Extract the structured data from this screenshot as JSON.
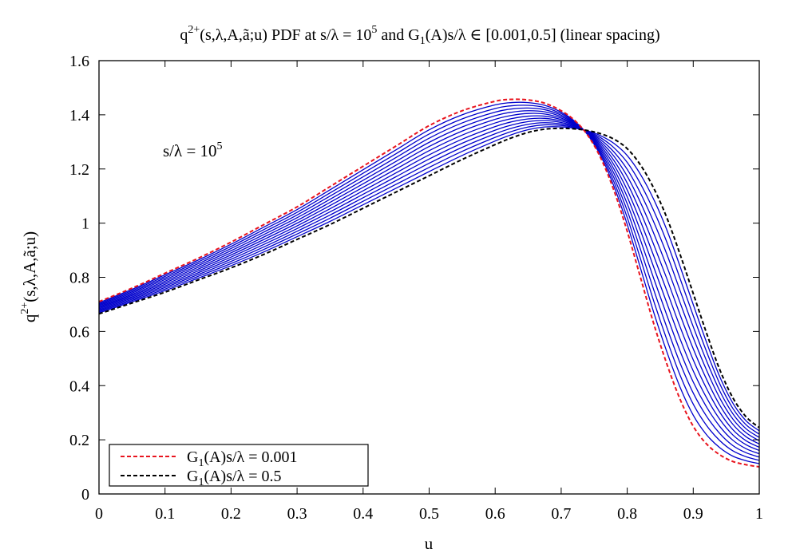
{
  "chart_data": {
    "type": "line",
    "title": {
      "prefix": "q",
      "sup": "2+",
      "mid": "(s,λ,A,ã;u) PDF at s/λ = 10",
      "sup2": "5",
      "tail": " and G",
      "sub": "1",
      "tail2": "(A)s/λ ∈ [0.001,0.5] (linear spacing)"
    },
    "xlabel": "u",
    "ylabel": {
      "prefix": "q",
      "sup": "2+",
      "rest": "(s,λ,A,ã;u)"
    },
    "annotation": {
      "base": "s/λ = 10",
      "sup": "5"
    },
    "xlim": [
      0,
      1
    ],
    "ylim": [
      0,
      1.6
    ],
    "x_ticks": [
      "0",
      "0.1",
      "0.2",
      "0.3",
      "0.4",
      "0.5",
      "0.6",
      "0.7",
      "0.8",
      "0.9",
      "1"
    ],
    "y_ticks": [
      "0",
      "0.2",
      "0.4",
      "0.6",
      "0.8",
      "1",
      "1.2",
      "1.4",
      "1.6"
    ],
    "grid": false,
    "legend_position": "bottom-left",
    "legend": [
      {
        "pre": "G",
        "sub": "1",
        "post": "(A)s/λ = 0.001",
        "color": "#e8141e"
      },
      {
        "pre": "G",
        "sub": "1",
        "post": "(A)s/λ = 0.5",
        "color": "#000000"
      }
    ],
    "intermediate_curve_count": 11,
    "intermediate_color": "#0000cc",
    "x": [
      0,
      0.05,
      0.1,
      0.15,
      0.2,
      0.25,
      0.3,
      0.35,
      0.4,
      0.45,
      0.5,
      0.55,
      0.6,
      0.625,
      0.65,
      0.675,
      0.7,
      0.72,
      0.74,
      0.76,
      0.78,
      0.8,
      0.82,
      0.84,
      0.86,
      0.88,
      0.9,
      0.92,
      0.94,
      0.96,
      0.98,
      1.0
    ],
    "series": [
      {
        "name": "G₁(A)s/λ = 0.001",
        "color": "#e8141e",
        "dashed": true,
        "values": [
          0.71,
          0.76,
          0.815,
          0.87,
          0.93,
          0.995,
          1.06,
          1.135,
          1.21,
          1.285,
          1.36,
          1.415,
          1.45,
          1.457,
          1.455,
          1.443,
          1.415,
          1.38,
          1.325,
          1.24,
          1.12,
          0.97,
          0.8,
          0.63,
          0.48,
          0.35,
          0.25,
          0.185,
          0.145,
          0.12,
          0.108,
          0.1
        ]
      },
      {
        "name": "G₁(A)s/λ = 0.5",
        "color": "#000000",
        "dashed": true,
        "values": [
          0.665,
          0.705,
          0.745,
          0.79,
          0.835,
          0.885,
          0.94,
          0.995,
          1.055,
          1.115,
          1.175,
          1.235,
          1.29,
          1.315,
          1.335,
          1.347,
          1.35,
          1.348,
          1.342,
          1.33,
          1.31,
          1.275,
          1.215,
          1.13,
          1.02,
          0.885,
          0.74,
          0.595,
          0.46,
          0.355,
          0.285,
          0.245
        ]
      }
    ]
  }
}
